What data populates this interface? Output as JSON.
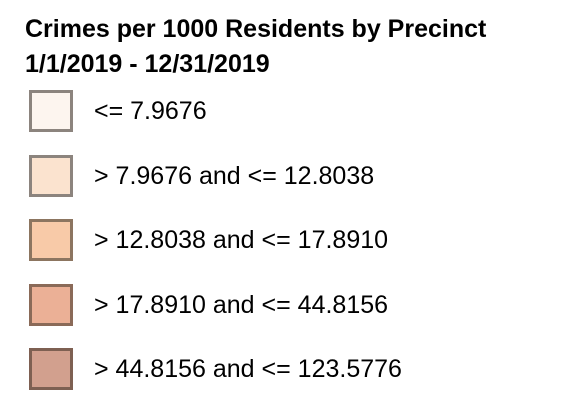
{
  "legend": {
    "title_line1": "Crimes per 1000 Residents by Precinct",
    "title_line2": "1/1/2019 - 12/31/2019",
    "items": [
      {
        "label": "<= 7.9676",
        "fill": "#fdf5ef",
        "border": "#8c847e"
      },
      {
        "label": "> 7.9676 and <= 12.8038",
        "fill": "#fbe3cf",
        "border": "#8c847e"
      },
      {
        "label": "> 12.8038 and <= 17.8910",
        "fill": "#f8caa8",
        "border": "#8c7560"
      },
      {
        "label": "> 17.8910 and <= 44.8156",
        "fill": "#ebb096",
        "border": "#8a6a58"
      },
      {
        "label": "> 44.8156 and <= 123.5776",
        "fill": "#d2a08e",
        "border": "#7e6052"
      }
    ]
  }
}
